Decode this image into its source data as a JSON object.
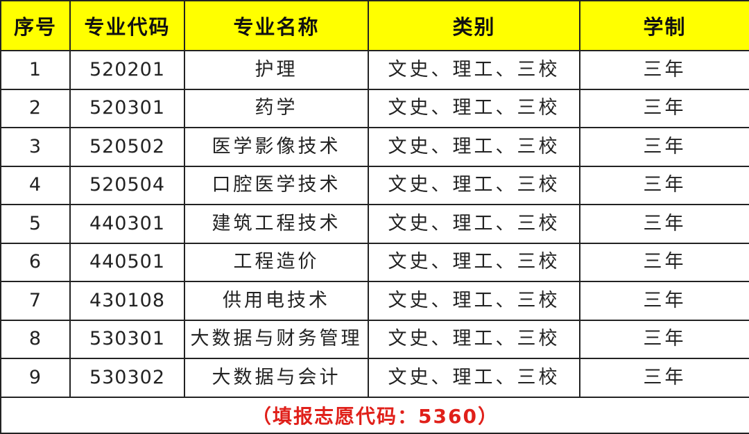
{
  "table": {
    "header": [
      "序号",
      "专业代码",
      "专业名称",
      "类别",
      "学制"
    ],
    "rows": [
      [
        "1",
        "520201",
        "护理",
        "文史、理工、三校",
        "三年"
      ],
      [
        "2",
        "520301",
        "药学",
        "文史、理工、三校",
        "三年"
      ],
      [
        "3",
        "520502",
        "医学影像技术",
        "文史、理工、三校",
        "三年"
      ],
      [
        "4",
        "520504",
        "口腔医学技术",
        "文史、理工、三校",
        "三年"
      ],
      [
        "5",
        "440301",
        "建筑工程技术",
        "文史、理工、三校",
        "三年"
      ],
      [
        "6",
        "440501",
        "工程造价",
        "文史、理工、三校",
        "三年"
      ],
      [
        "7",
        "430108",
        "供用电技术",
        "文史、理工、三校",
        "三年"
      ],
      [
        "8",
        "530301",
        "大数据与财务管理",
        "文史、理工、三校",
        "三年"
      ],
      [
        "9",
        "530302",
        "大数据与会计",
        "文史、理工、三校",
        "三年"
      ]
    ],
    "footer": "（填报志愿代码：5360）"
  }
}
